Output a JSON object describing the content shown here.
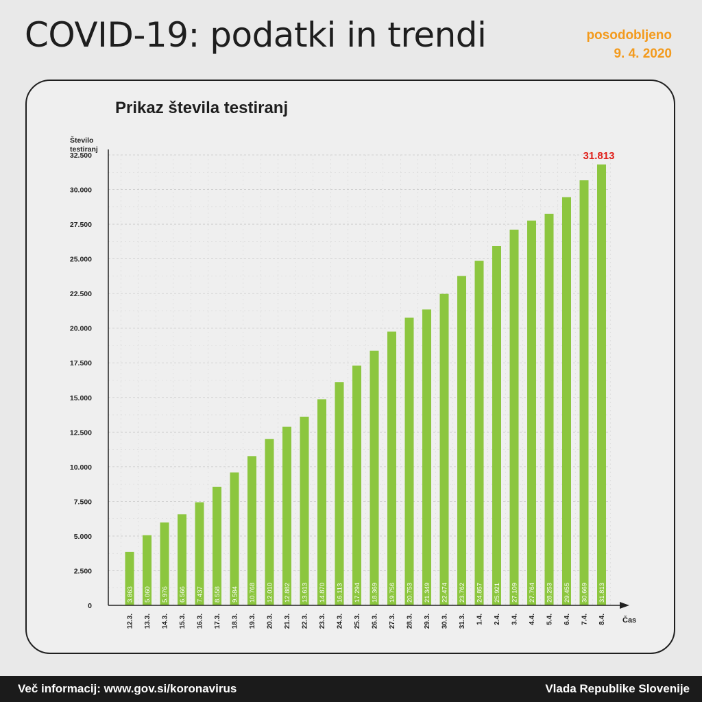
{
  "header": {
    "title": "COVID-19: podatki in trendi",
    "updated_label": "posodobljeno",
    "updated_date": "9. 4. 2020"
  },
  "colors": {
    "bar": "#8cc63f",
    "highlight": "#e0201b",
    "updated": "#f39a1c",
    "footer_bg": "#1b1b1b"
  },
  "chart_data": {
    "type": "bar",
    "title": "Prikaz števila testiranj",
    "ylabel": "Število testiranj",
    "xlabel": "Čas",
    "ylim": [
      0,
      32500
    ],
    "y_ticks": [
      "0",
      "2.500",
      "5.000",
      "7.500",
      "10.000",
      "12.500",
      "15.000",
      "17.500",
      "20.000",
      "22.500",
      "25.000",
      "27.500",
      "30.000",
      "32.500"
    ],
    "y_tick_values": [
      0,
      2500,
      5000,
      7500,
      10000,
      12500,
      15000,
      17500,
      20000,
      22500,
      25000,
      27500,
      30000,
      32500
    ],
    "categories": [
      "12.3.",
      "13.3.",
      "14.3.",
      "15.3.",
      "16.3.",
      "17.3.",
      "18.3.",
      "19.3.",
      "20.3.",
      "21.3.",
      "22.3.",
      "23.3.",
      "24.3.",
      "25.3.",
      "26.3.",
      "27.3.",
      "28.3.",
      "29.3.",
      "30.3.",
      "31.3.",
      "1.4.",
      "2.4.",
      "3.4.",
      "4.4.",
      "5.4.",
      "6.4.",
      "7.4.",
      "8.4."
    ],
    "values": [
      3863,
      5060,
      5976,
      6566,
      7437,
      8558,
      9584,
      10768,
      12010,
      12882,
      13613,
      14870,
      16113,
      17294,
      18369,
      19756,
      20753,
      21349,
      22474,
      23762,
      24857,
      25921,
      27109,
      27764,
      28253,
      29455,
      30669,
      31813
    ],
    "value_labels": [
      "3.863",
      "5.060",
      "5.976",
      "6.566",
      "7.437",
      "8.558",
      "9.584",
      "10.768",
      "12.010",
      "12.882",
      "13.613",
      "14.870",
      "16.113",
      "17.294",
      "18.369",
      "19.756",
      "20.753",
      "21.349",
      "22.474",
      "23.762",
      "24.857",
      "25.921",
      "27.109",
      "27.764",
      "28.253",
      "29.455",
      "30.669",
      "31.813"
    ],
    "highlight_label": "31.813",
    "grid": true
  },
  "footer": {
    "left": "Več informacij: www.gov.si/koronavirus",
    "right": "Vlada Republike Slovenije"
  }
}
